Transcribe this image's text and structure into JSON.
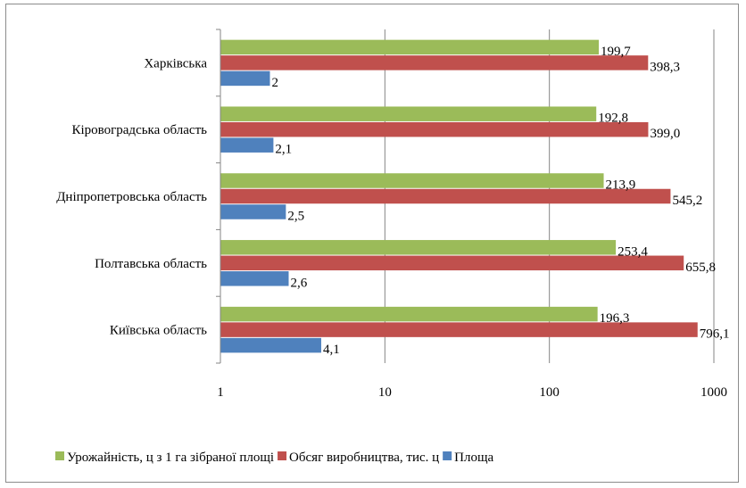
{
  "chart_data": {
    "type": "bar",
    "orientation": "horizontal",
    "x_scale": "log",
    "xlim": [
      1,
      1000
    ],
    "x_ticks": [
      "1",
      "10",
      "100",
      "1000"
    ],
    "categories": [
      "Харківська",
      "Кіровоградська область",
      "Дніпропетровська область",
      "Полтавська область",
      "Київська область"
    ],
    "series": [
      {
        "name": "Урожайність, ц з 1 га зібраної площі",
        "color": "#9BBB59",
        "values": [
          199.7,
          192.8,
          213.9,
          253.4,
          196.3
        ],
        "labels": [
          "199,7",
          "192,8",
          "213,9",
          "253,4",
          "196,3"
        ]
      },
      {
        "name": "Обсяг виробництва, тис. ц",
        "color": "#C0504D",
        "values": [
          398.3,
          399.0,
          545.2,
          655.8,
          796.1
        ],
        "labels": [
          "398,3",
          "399,0",
          "545,2",
          "655,8",
          "796,1"
        ]
      },
      {
        "name": "Площа",
        "color": "#4F81BD",
        "values": [
          2,
          2.1,
          2.5,
          2.6,
          4.1
        ],
        "labels": [
          "2",
          "2,1",
          "2,5",
          "2,6",
          "4,1"
        ]
      }
    ],
    "grid": true,
    "legend_position": "bottom"
  }
}
